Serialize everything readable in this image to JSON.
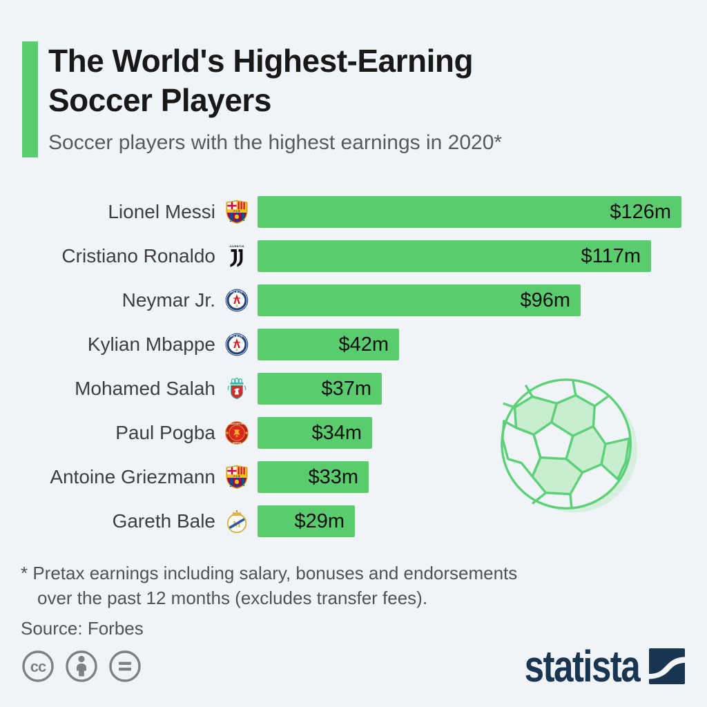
{
  "header": {
    "title_line1": "The World's Highest-Earning",
    "title_line2": "Soccer Players",
    "subtitle": "Soccer players with the highest earnings in 2020*",
    "accent_color": "#5bcc6e"
  },
  "chart_data": {
    "type": "bar",
    "orientation": "horizontal",
    "title": "The World's Highest-Earning Soccer Players",
    "subtitle": "Soccer players with the highest earnings in 2020*",
    "categories": [
      "Lionel Messi",
      "Cristiano Ronaldo",
      "Neymar Jr.",
      "Kylian Mbappe",
      "Mohamed Salah",
      "Paul Pogba",
      "Antoine Griezmann",
      "Gareth Bale"
    ],
    "values": [
      126,
      117,
      96,
      42,
      37,
      34,
      33,
      29
    ],
    "value_labels": [
      "$126m",
      "$117m",
      "$96m",
      "$42m",
      "$37m",
      "$34m",
      "$33m",
      "$29m"
    ],
    "clubs": [
      "FC Barcelona",
      "Juventus",
      "Paris Saint-Germain",
      "Paris Saint-Germain",
      "Liverpool FC",
      "Manchester United",
      "FC Barcelona",
      "Real Madrid"
    ],
    "unit": "million US dollars",
    "xlim": [
      0,
      126
    ],
    "bar_color": "#5bcc6e",
    "grid": false,
    "legend": false,
    "source": "Forbes"
  },
  "players": [
    {
      "name": "Lionel Messi",
      "value": 126,
      "label": "$126m",
      "club": "FC Barcelona",
      "badge": "barcelona"
    },
    {
      "name": "Cristiano Ronaldo",
      "value": 117,
      "label": "$117m",
      "club": "Juventus",
      "badge": "juventus"
    },
    {
      "name": "Neymar Jr.",
      "value": 96,
      "label": "$96m",
      "club": "Paris Saint-Germain",
      "badge": "psg"
    },
    {
      "name": "Kylian Mbappe",
      "value": 42,
      "label": "$42m",
      "club": "Paris Saint-Germain",
      "badge": "psg"
    },
    {
      "name": "Mohamed Salah",
      "value": 37,
      "label": "$37m",
      "club": "Liverpool FC",
      "badge": "liverpool"
    },
    {
      "name": "Paul Pogba",
      "value": 34,
      "label": "$34m",
      "club": "Manchester United",
      "badge": "manutd"
    },
    {
      "name": "Antoine Griezmann",
      "value": 33,
      "label": "$33m",
      "club": "FC Barcelona",
      "badge": "barcelona"
    },
    {
      "name": "Gareth Bale",
      "value": 29,
      "label": "$29m",
      "club": "Real Madrid",
      "badge": "realmadrid"
    }
  ],
  "footnote": {
    "line1": "* Pretax earnings including salary, bonuses and endorsements",
    "line2": "over the past 12 months (excludes transfer fees).",
    "source": "Source: Forbes"
  },
  "footer": {
    "brand": "statista",
    "license_icons": [
      "cc",
      "by",
      "nd"
    ],
    "brand_color": "#1a3550"
  }
}
